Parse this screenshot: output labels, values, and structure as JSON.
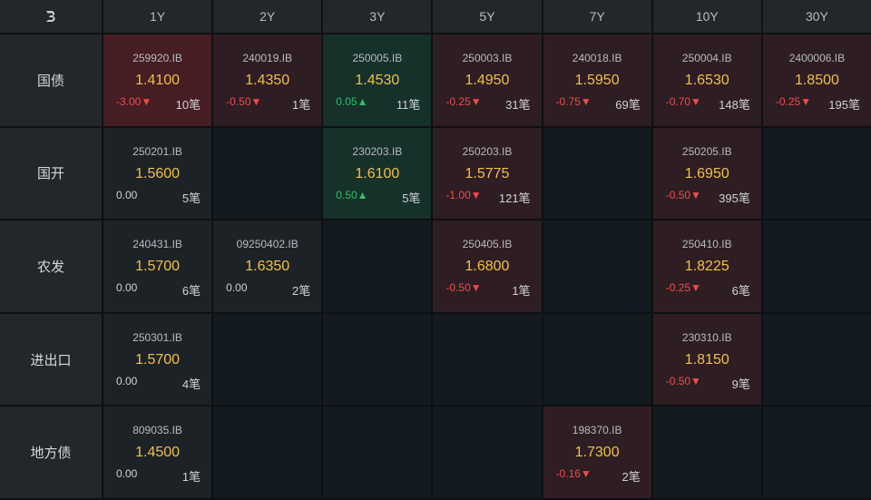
{
  "corner_icon": "b-logo-icon",
  "tenors": [
    "1Y",
    "2Y",
    "3Y",
    "5Y",
    "7Y",
    "10Y",
    "30Y"
  ],
  "rows": [
    {
      "label": "国债",
      "cells": [
        {
          "bond": "259920.IB",
          "yield": "1.4100",
          "change": "-3.00▼",
          "count": "10笔",
          "tone": "upstrong"
        },
        {
          "bond": "240019.IB",
          "yield": "1.4350",
          "change": "-0.50▼",
          "count": "1笔",
          "tone": "up"
        },
        {
          "bond": "250005.IB",
          "yield": "1.4530",
          "change": "0.05▲",
          "count": "11笔",
          "tone": "down"
        },
        {
          "bond": "250003.IB",
          "yield": "1.4950",
          "change": "-0.25▼",
          "count": "31笔",
          "tone": "up"
        },
        {
          "bond": "240018.IB",
          "yield": "1.5950",
          "change": "-0.75▼",
          "count": "69笔",
          "tone": "up"
        },
        {
          "bond": "250004.IB",
          "yield": "1.6530",
          "change": "-0.70▼",
          "count": "148笔",
          "tone": "up"
        },
        {
          "bond": "2400006.IB",
          "yield": "1.8500",
          "change": "-0.25▼",
          "count": "195笔",
          "tone": "up"
        }
      ]
    },
    {
      "label": "国开",
      "cells": [
        {
          "bond": "250201.IB",
          "yield": "1.5600",
          "change": "0.00",
          "count": "5笔",
          "tone": "neutral"
        },
        null,
        {
          "bond": "230203.IB",
          "yield": "1.6100",
          "change": "0.50▲",
          "count": "5笔",
          "tone": "down"
        },
        {
          "bond": "250203.IB",
          "yield": "1.5775",
          "change": "-1.00▼",
          "count": "121笔",
          "tone": "up"
        },
        null,
        {
          "bond": "250205.IB",
          "yield": "1.6950",
          "change": "-0.50▼",
          "count": "395笔",
          "tone": "up"
        },
        null
      ]
    },
    {
      "label": "农发",
      "cells": [
        {
          "bond": "240431.IB",
          "yield": "1.5700",
          "change": "0.00",
          "count": "6笔",
          "tone": "neutral"
        },
        {
          "bond": "09250402.IB",
          "yield": "1.6350",
          "change": "0.00",
          "count": "2笔",
          "tone": "neutral"
        },
        null,
        {
          "bond": "250405.IB",
          "yield": "1.6800",
          "change": "-0.50▼",
          "count": "1笔",
          "tone": "up"
        },
        null,
        {
          "bond": "250410.IB",
          "yield": "1.8225",
          "change": "-0.25▼",
          "count": "6笔",
          "tone": "up"
        },
        null
      ]
    },
    {
      "label": "进出口",
      "cells": [
        {
          "bond": "250301.IB",
          "yield": "1.5700",
          "change": "0.00",
          "count": "4笔",
          "tone": "neutral"
        },
        null,
        null,
        null,
        null,
        {
          "bond": "230310.IB",
          "yield": "1.8150",
          "change": "-0.50▼",
          "count": "9笔",
          "tone": "up"
        },
        null
      ]
    },
    {
      "label": "地方债",
      "cells": [
        {
          "bond": "809035.IB",
          "yield": "1.4500",
          "change": "0.00",
          "count": "1笔",
          "tone": "neutral"
        },
        null,
        null,
        null,
        {
          "bond": "198370.IB",
          "yield": "1.7300",
          "change": "-0.16▼",
          "count": "2笔",
          "tone": "up"
        },
        null,
        null
      ]
    }
  ],
  "colors": {
    "yield": "#f0c04a",
    "negative": "#f04b4b",
    "positive": "#2ec26a"
  }
}
